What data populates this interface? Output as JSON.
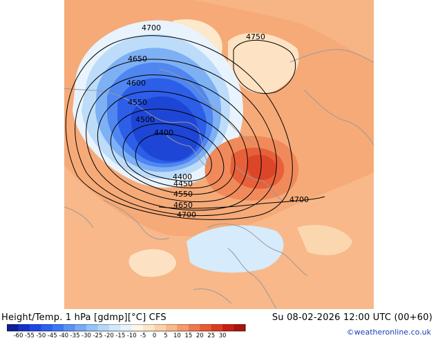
{
  "header": {
    "title": "Height/Temp. 1 hPa [gdmp][°C] CFS",
    "datetime": "Su 08-02-2026 12:00 UTC (00+60)",
    "credit": "©weatheronline.co.uk"
  },
  "map": {
    "contour_labels": [
      "4700",
      "4750",
      "4650",
      "4600",
      "4550",
      "4500",
      "4400",
      "4400",
      "4450",
      "4550",
      "4650",
      "4700",
      "4700"
    ]
  },
  "legend": {
    "tick_labels": [
      "-60",
      "-55",
      "-50",
      "-45",
      "-40",
      "-35",
      "-30",
      "-25",
      "-20",
      "-15",
      "-10",
      "-5",
      "0",
      "5",
      "10",
      "15",
      "20",
      "25",
      "30"
    ],
    "colors": [
      "#0f1f96",
      "#1432c8",
      "#1e46e6",
      "#2d5ff0",
      "#3c78f5",
      "#5a91f5",
      "#78aaf5",
      "#96c3f8",
      "#b4d7fa",
      "#d2e8fc",
      "#e6f2fe",
      "#fff5e6",
      "#fde6c8",
      "#fbd2a5",
      "#f9b98a",
      "#f59b6e",
      "#f07850",
      "#e85a32",
      "#dc3c1e",
      "#c81e14",
      "#aa140e"
    ]
  }
}
